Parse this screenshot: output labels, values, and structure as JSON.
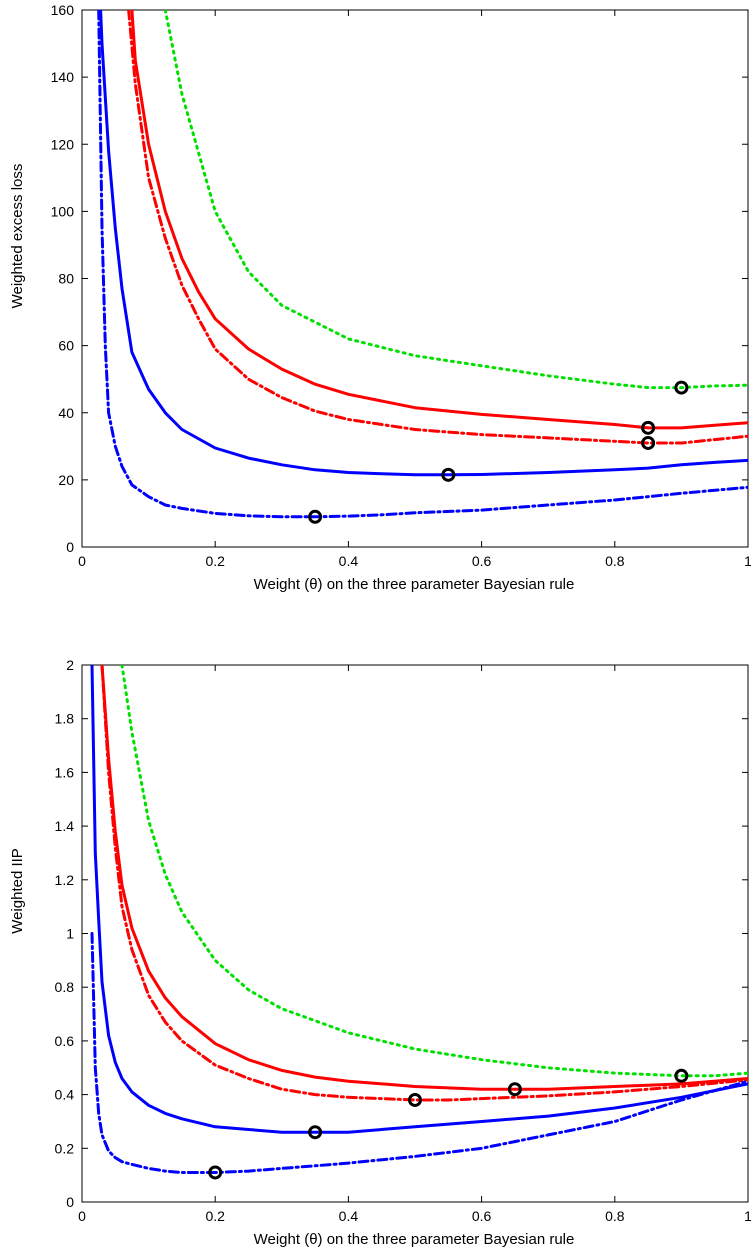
{
  "chart_data": [
    {
      "type": "line",
      "xlabel": "Weight (θ) on the three parameter Bayesian rule",
      "ylabel": "Weighted excess loss",
      "xlim": [
        0,
        1
      ],
      "ylim": [
        0,
        160
      ],
      "xticks": [
        0,
        0.2,
        0.4,
        0.6,
        0.8,
        1
      ],
      "xtick_labels": [
        "0",
        "0.2",
        "0.4",
        "0.6",
        "0.8",
        "1"
      ],
      "yticks": [
        0,
        20,
        40,
        60,
        80,
        100,
        120,
        140,
        160
      ],
      "ytick_labels": [
        "0",
        "20",
        "40",
        "60",
        "80",
        "100",
        "120",
        "140",
        "160"
      ],
      "grid": false,
      "series": [
        {
          "color": "#00e000",
          "style": "dotted",
          "x": [
            0.125,
            0.15,
            0.2,
            0.25,
            0.3,
            0.4,
            0.5,
            0.6,
            0.7,
            0.8,
            0.85,
            0.9,
            0.95,
            1.0
          ],
          "y": [
            160,
            135,
            100,
            82,
            72,
            62,
            57,
            54,
            51,
            48.5,
            47.5,
            47.5,
            48,
            48.2
          ],
          "markers": [
            [
              0.9,
              47.5
            ]
          ]
        },
        {
          "color": "#ff0000",
          "style": "solid",
          "x": [
            0.075,
            0.08,
            0.1,
            0.125,
            0.15,
            0.175,
            0.2,
            0.25,
            0.3,
            0.35,
            0.4,
            0.5,
            0.6,
            0.7,
            0.8,
            0.85,
            0.9,
            0.95,
            1.0
          ],
          "y": [
            160,
            145,
            120,
            100,
            86,
            76,
            68,
            59,
            53,
            48.5,
            45.5,
            41.5,
            39.5,
            38,
            36.5,
            35.5,
            35.5,
            36.3,
            37
          ],
          "markers": [
            [
              0.85,
              35.5
            ]
          ]
        },
        {
          "color": "#ff0000",
          "style": "dashdot",
          "x": [
            0.07,
            0.08,
            0.1,
            0.125,
            0.15,
            0.175,
            0.2,
            0.25,
            0.3,
            0.35,
            0.4,
            0.5,
            0.6,
            0.7,
            0.8,
            0.85,
            0.9,
            0.95,
            1.0
          ],
          "y": [
            160,
            138,
            110,
            92,
            78,
            68,
            59,
            50,
            44.5,
            40.5,
            38,
            35,
            33.5,
            32.5,
            31.5,
            31,
            31,
            32,
            33
          ],
          "markers": [
            [
              0.85,
              31
            ]
          ]
        },
        {
          "color": "#0000ff",
          "style": "solid",
          "x": [
            0.028,
            0.03,
            0.04,
            0.05,
            0.06,
            0.075,
            0.1,
            0.125,
            0.15,
            0.2,
            0.25,
            0.3,
            0.35,
            0.4,
            0.45,
            0.5,
            0.55,
            0.6,
            0.7,
            0.8,
            0.85,
            0.9,
            0.95,
            1.0
          ],
          "y": [
            160,
            150,
            118,
            95,
            77,
            58,
            47,
            40,
            35,
            29.5,
            26.5,
            24.5,
            23,
            22.2,
            21.8,
            21.5,
            21.5,
            21.6,
            22.2,
            23,
            23.5,
            24.5,
            25.2,
            25.8
          ],
          "markers": [
            [
              0.55,
              21.5
            ]
          ]
        },
        {
          "color": "#0000ff",
          "style": "dashdot",
          "x": [
            0.025,
            0.03,
            0.035,
            0.04,
            0.05,
            0.06,
            0.075,
            0.1,
            0.125,
            0.15,
            0.2,
            0.25,
            0.3,
            0.35,
            0.4,
            0.45,
            0.5,
            0.6,
            0.7,
            0.8,
            0.9,
            1.0
          ],
          "y": [
            160,
            95,
            60,
            40,
            30,
            24,
            18.5,
            15,
            12.5,
            11.5,
            10,
            9.3,
            9,
            9,
            9.2,
            9.6,
            10.2,
            11,
            12.5,
            14,
            16,
            17.8
          ],
          "markers": [
            [
              0.35,
              9
            ]
          ]
        }
      ]
    },
    {
      "type": "line",
      "xlabel": "Weight (θ) on the three parameter Bayesian rule",
      "ylabel": "Weighted IIP",
      "xlim": [
        0,
        1
      ],
      "ylim": [
        0,
        2
      ],
      "xticks": [
        0,
        0.2,
        0.4,
        0.6,
        0.8,
        1
      ],
      "xtick_labels": [
        "0",
        "0.2",
        "0.4",
        "0.6",
        "0.8",
        "1"
      ],
      "yticks": [
        0,
        0.2,
        0.4,
        0.6,
        0.8,
        1,
        1.2,
        1.4,
        1.6,
        1.8,
        2
      ],
      "ytick_labels": [
        "0",
        "0.2",
        "0.4",
        "0.6",
        "0.8",
        "1",
        "1.2",
        "1.4",
        "1.6",
        "1.8",
        "2"
      ],
      "grid": false,
      "series": [
        {
          "color": "#00e000",
          "style": "dotted",
          "x": [
            0.06,
            0.075,
            0.1,
            0.125,
            0.15,
            0.2,
            0.25,
            0.3,
            0.4,
            0.5,
            0.6,
            0.7,
            0.8,
            0.9,
            0.95,
            1.0
          ],
          "y": [
            2.0,
            1.75,
            1.42,
            1.22,
            1.08,
            0.9,
            0.79,
            0.72,
            0.63,
            0.57,
            0.53,
            0.5,
            0.48,
            0.47,
            0.47,
            0.48
          ],
          "markers": [
            [
              0.9,
              0.47
            ]
          ]
        },
        {
          "color": "#ff0000",
          "style": "solid",
          "x": [
            0.03,
            0.04,
            0.05,
            0.06,
            0.075,
            0.1,
            0.125,
            0.15,
            0.2,
            0.25,
            0.3,
            0.35,
            0.4,
            0.5,
            0.6,
            0.65,
            0.7,
            0.8,
            0.9,
            1.0
          ],
          "y": [
            2.0,
            1.65,
            1.38,
            1.18,
            1.02,
            0.86,
            0.76,
            0.69,
            0.59,
            0.53,
            0.49,
            0.465,
            0.45,
            0.43,
            0.42,
            0.42,
            0.42,
            0.43,
            0.44,
            0.46
          ],
          "markers": [
            [
              0.65,
              0.42
            ]
          ]
        },
        {
          "color": "#ff0000",
          "style": "dashdot",
          "x": [
            0.03,
            0.04,
            0.05,
            0.06,
            0.075,
            0.1,
            0.125,
            0.15,
            0.2,
            0.25,
            0.3,
            0.35,
            0.4,
            0.45,
            0.5,
            0.55,
            0.6,
            0.7,
            0.8,
            0.9,
            1.0
          ],
          "y": [
            2.0,
            1.6,
            1.32,
            1.1,
            0.94,
            0.77,
            0.67,
            0.6,
            0.51,
            0.46,
            0.42,
            0.4,
            0.39,
            0.385,
            0.38,
            0.38,
            0.385,
            0.395,
            0.41,
            0.43,
            0.455
          ],
          "markers": [
            [
              0.5,
              0.38
            ]
          ]
        },
        {
          "color": "#0000ff",
          "style": "solid",
          "x": [
            0.015,
            0.02,
            0.025,
            0.03,
            0.04,
            0.05,
            0.06,
            0.075,
            0.1,
            0.125,
            0.15,
            0.2,
            0.25,
            0.3,
            0.35,
            0.4,
            0.5,
            0.6,
            0.7,
            0.8,
            0.9,
            1.0
          ],
          "y": [
            2.0,
            1.3,
            1.05,
            0.82,
            0.62,
            0.52,
            0.46,
            0.41,
            0.36,
            0.33,
            0.31,
            0.28,
            0.27,
            0.26,
            0.26,
            0.26,
            0.28,
            0.3,
            0.32,
            0.35,
            0.39,
            0.44
          ],
          "markers": [
            [
              0.35,
              0.26
            ]
          ]
        },
        {
          "color": "#0000ff",
          "style": "dashdot",
          "x": [
            0.015,
            0.018,
            0.02,
            0.025,
            0.03,
            0.04,
            0.05,
            0.06,
            0.075,
            0.1,
            0.125,
            0.15,
            0.2,
            0.25,
            0.3,
            0.35,
            0.4,
            0.5,
            0.6,
            0.7,
            0.8,
            0.9,
            1.0
          ],
          "y": [
            1.0,
            0.7,
            0.5,
            0.33,
            0.25,
            0.19,
            0.165,
            0.15,
            0.14,
            0.125,
            0.115,
            0.11,
            0.11,
            0.115,
            0.125,
            0.135,
            0.145,
            0.17,
            0.2,
            0.25,
            0.3,
            0.38,
            0.45
          ],
          "markers": [
            [
              0.2,
              0.11
            ]
          ]
        }
      ]
    }
  ]
}
